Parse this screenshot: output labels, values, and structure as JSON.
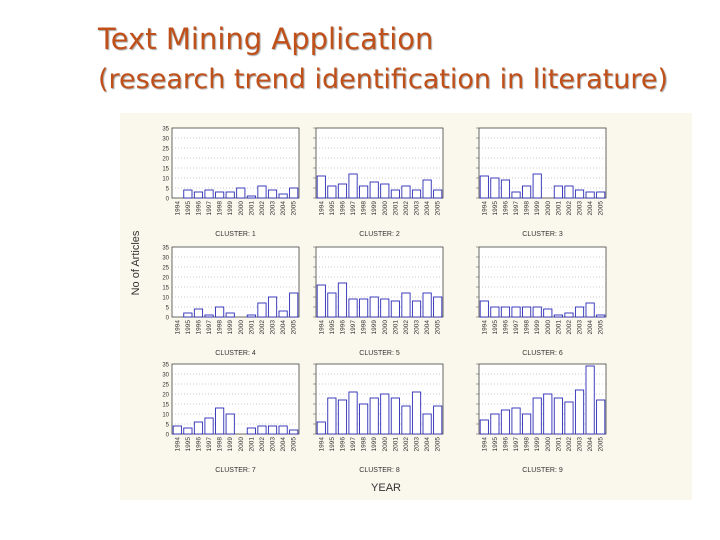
{
  "slide": {
    "title": "Text Mining Application",
    "subtitle": "(research trend identification in literature)",
    "title_color": "#c0501a"
  },
  "chart_data": {
    "type": "bar",
    "layout": "3x3 small multiples",
    "xlabel": "YEAR",
    "ylabel": "No of Articles",
    "ylim": [
      0,
      35
    ],
    "yticks": [
      0,
      5,
      10,
      15,
      20,
      25,
      30,
      35
    ],
    "categories": [
      "1994",
      "1995",
      "1996",
      "1997",
      "1998",
      "1999",
      "2000",
      "2001",
      "2002",
      "2003",
      "2004",
      "2005"
    ],
    "grid": "dotted horizontal",
    "bar_color": "#2b2bb5",
    "panels": [
      {
        "title": "CLUSTER: 1",
        "values": [
          0,
          4,
          3,
          4,
          3,
          3,
          5,
          1,
          6,
          4,
          2,
          5
        ],
        "categories": [
          "1994",
          "1995",
          "1996",
          "1997",
          "1998",
          "1999",
          "2000",
          "2001",
          "2002",
          "2003",
          "2004",
          "2005"
        ]
      },
      {
        "title": "CLUSTER: 2",
        "values": [
          11,
          6,
          7,
          12,
          6,
          8,
          7,
          4,
          6,
          4,
          9,
          4
        ],
        "categories": [
          "1994",
          "1995",
          "1996",
          "1997",
          "1998",
          "1999",
          "2000",
          "2001",
          "2002",
          "2003",
          "2004",
          "2005"
        ]
      },
      {
        "title": "CLUSTER: 3",
        "values": [
          11,
          10,
          9,
          3,
          6,
          12,
          0,
          6,
          6,
          4,
          3,
          3
        ],
        "categories": [
          "1994",
          "1995",
          "1996",
          "1997",
          "1998",
          "1999",
          "2000",
          "2001",
          "2002",
          "2003",
          "2004",
          "2005"
        ]
      },
      {
        "title": "CLUSTER: 4",
        "values": [
          0,
          2,
          4,
          1,
          5,
          2,
          0,
          1,
          7,
          10,
          3,
          12
        ],
        "categories": [
          "1994",
          "1995",
          "1996",
          "1997",
          "1998",
          "1999",
          "2000",
          "2001",
          "2002",
          "2003",
          "2004",
          "2005"
        ]
      },
      {
        "title": "CLUSTER: 5",
        "values": [
          16,
          12,
          17,
          9,
          9,
          10,
          9,
          8,
          12,
          8,
          12,
          10
        ],
        "categories": [
          "1994",
          "1995",
          "1996",
          "1997",
          "1998",
          "1999",
          "2000",
          "2001",
          "2002",
          "2003",
          "2004",
          "2005"
        ]
      },
      {
        "title": "CLUSTER: 6",
        "values": [
          8,
          5,
          5,
          5,
          5,
          5,
          4,
          1,
          2,
          5,
          7,
          1
        ],
        "categories": [
          "1994",
          "1995",
          "1996",
          "1997",
          "1998",
          "1999",
          "2000",
          "2001",
          "2002",
          "2003",
          "2004",
          "2005"
        ]
      },
      {
        "title": "CLUSTER: 7",
        "values": [
          4,
          3,
          6,
          8,
          13,
          10,
          0,
          3,
          4,
          4,
          4,
          2
        ],
        "categories": [
          "1994",
          "1995",
          "1996",
          "1997",
          "1998",
          "1999",
          "2000",
          "2001",
          "2002",
          "2003",
          "2004",
          "2005"
        ]
      },
      {
        "title": "CLUSTER: 8",
        "values": [
          6,
          18,
          17,
          21,
          15,
          18,
          20,
          18,
          14,
          21,
          10,
          14
        ],
        "categories": [
          "1994",
          "1995",
          "1996",
          "1997",
          "1998",
          "1999",
          "2000",
          "2001",
          "2002",
          "2003",
          "2004",
          "2005"
        ]
      },
      {
        "title": "CLUSTER: 9",
        "values": [
          7,
          10,
          12,
          13,
          10,
          18,
          20,
          18,
          16,
          22,
          34,
          17
        ],
        "categories": [
          "1994",
          "1995",
          "1996",
          "1997",
          "1998",
          "1999",
          "2000",
          "2001",
          "2002",
          "2003",
          "2004",
          "2005"
        ]
      }
    ]
  }
}
